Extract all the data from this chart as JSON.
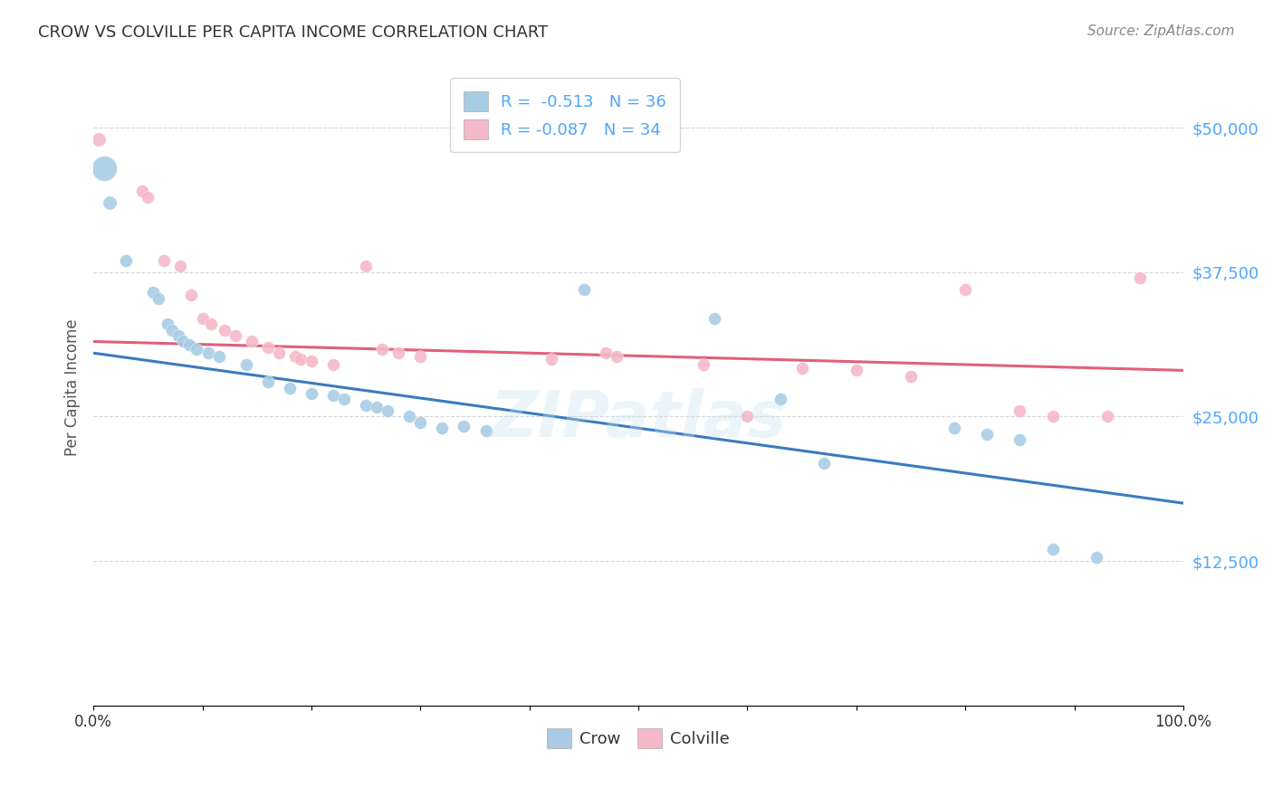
{
  "title": "CROW VS COLVILLE PER CAPITA INCOME CORRELATION CHART",
  "source": "Source: ZipAtlas.com",
  "ylabel": "Per Capita Income",
  "yticks": [
    0,
    12500,
    25000,
    37500,
    50000
  ],
  "ytick_labels": [
    "",
    "$12,500",
    "$25,000",
    "$37,500",
    "$50,000"
  ],
  "crow_r": "-0.513",
  "crow_n": "36",
  "colville_r": "-0.087",
  "colville_n": "34",
  "crow_color": "#a8cce4",
  "crow_line_color": "#3a7bbf",
  "colville_color": "#f5b8c8",
  "colville_line_color": "#e0607a",
  "legend_crow_label": "Crow",
  "legend_colville_label": "Colville",
  "crow_points": [
    [
      1.0,
      46500,
      400
    ],
    [
      1.5,
      43500,
      120
    ],
    [
      3.0,
      38500,
      100
    ],
    [
      5.5,
      35800,
      100
    ],
    [
      6.0,
      35200,
      100
    ],
    [
      6.8,
      33000,
      100
    ],
    [
      7.2,
      32500,
      100
    ],
    [
      7.8,
      32000,
      100
    ],
    [
      8.2,
      31500,
      100
    ],
    [
      8.8,
      31200,
      100
    ],
    [
      9.5,
      30800,
      100
    ],
    [
      10.5,
      30500,
      100
    ],
    [
      11.5,
      30200,
      100
    ],
    [
      14.0,
      29500,
      100
    ],
    [
      16.0,
      28000,
      100
    ],
    [
      18.0,
      27500,
      100
    ],
    [
      20.0,
      27000,
      100
    ],
    [
      22.0,
      26800,
      100
    ],
    [
      23.0,
      26500,
      100
    ],
    [
      25.0,
      26000,
      100
    ],
    [
      26.0,
      25800,
      100
    ],
    [
      27.0,
      25500,
      100
    ],
    [
      29.0,
      25000,
      100
    ],
    [
      30.0,
      24500,
      100
    ],
    [
      32.0,
      24000,
      100
    ],
    [
      34.0,
      24200,
      100
    ],
    [
      36.0,
      23800,
      100
    ],
    [
      45.0,
      36000,
      100
    ],
    [
      57.0,
      33500,
      100
    ],
    [
      63.0,
      26500,
      100
    ],
    [
      67.0,
      21000,
      100
    ],
    [
      79.0,
      24000,
      100
    ],
    [
      82.0,
      23500,
      100
    ],
    [
      85.0,
      23000,
      100
    ],
    [
      88.0,
      13500,
      100
    ],
    [
      92.0,
      12800,
      100
    ]
  ],
  "colville_points": [
    [
      0.5,
      49000,
      120
    ],
    [
      4.5,
      44500,
      100
    ],
    [
      5.0,
      44000,
      100
    ],
    [
      6.5,
      38500,
      100
    ],
    [
      8.0,
      38000,
      100
    ],
    [
      9.0,
      35500,
      100
    ],
    [
      10.0,
      33500,
      100
    ],
    [
      10.8,
      33000,
      100
    ],
    [
      12.0,
      32500,
      100
    ],
    [
      13.0,
      32000,
      100
    ],
    [
      14.5,
      31500,
      100
    ],
    [
      16.0,
      31000,
      100
    ],
    [
      17.0,
      30500,
      100
    ],
    [
      18.5,
      30200,
      100
    ],
    [
      19.0,
      30000,
      100
    ],
    [
      20.0,
      29800,
      100
    ],
    [
      22.0,
      29500,
      100
    ],
    [
      25.0,
      38000,
      100
    ],
    [
      26.5,
      30800,
      100
    ],
    [
      28.0,
      30500,
      100
    ],
    [
      30.0,
      30200,
      100
    ],
    [
      42.0,
      30000,
      100
    ],
    [
      47.0,
      30500,
      100
    ],
    [
      48.0,
      30200,
      100
    ],
    [
      56.0,
      29500,
      100
    ],
    [
      60.0,
      25000,
      100
    ],
    [
      65.0,
      29200,
      100
    ],
    [
      70.0,
      29000,
      100
    ],
    [
      75.0,
      28500,
      100
    ],
    [
      80.0,
      36000,
      100
    ],
    [
      85.0,
      25500,
      100
    ],
    [
      88.0,
      25000,
      100
    ],
    [
      93.0,
      25000,
      100
    ],
    [
      96.0,
      37000,
      100
    ]
  ],
  "crow_line": [
    0,
    100,
    30500,
    17500
  ],
  "colville_line": [
    0,
    100,
    31500,
    29000
  ],
  "background_color": "#ffffff",
  "grid_color": "#cccccc",
  "title_color": "#333333",
  "source_color": "#888888",
  "axis_tick_color": "#4da6ff",
  "legend_text_color": "#4da6ff",
  "watermark_text": "ZIPatlas",
  "watermark_color": "#c8e0f0",
  "watermark_alpha": 0.35
}
